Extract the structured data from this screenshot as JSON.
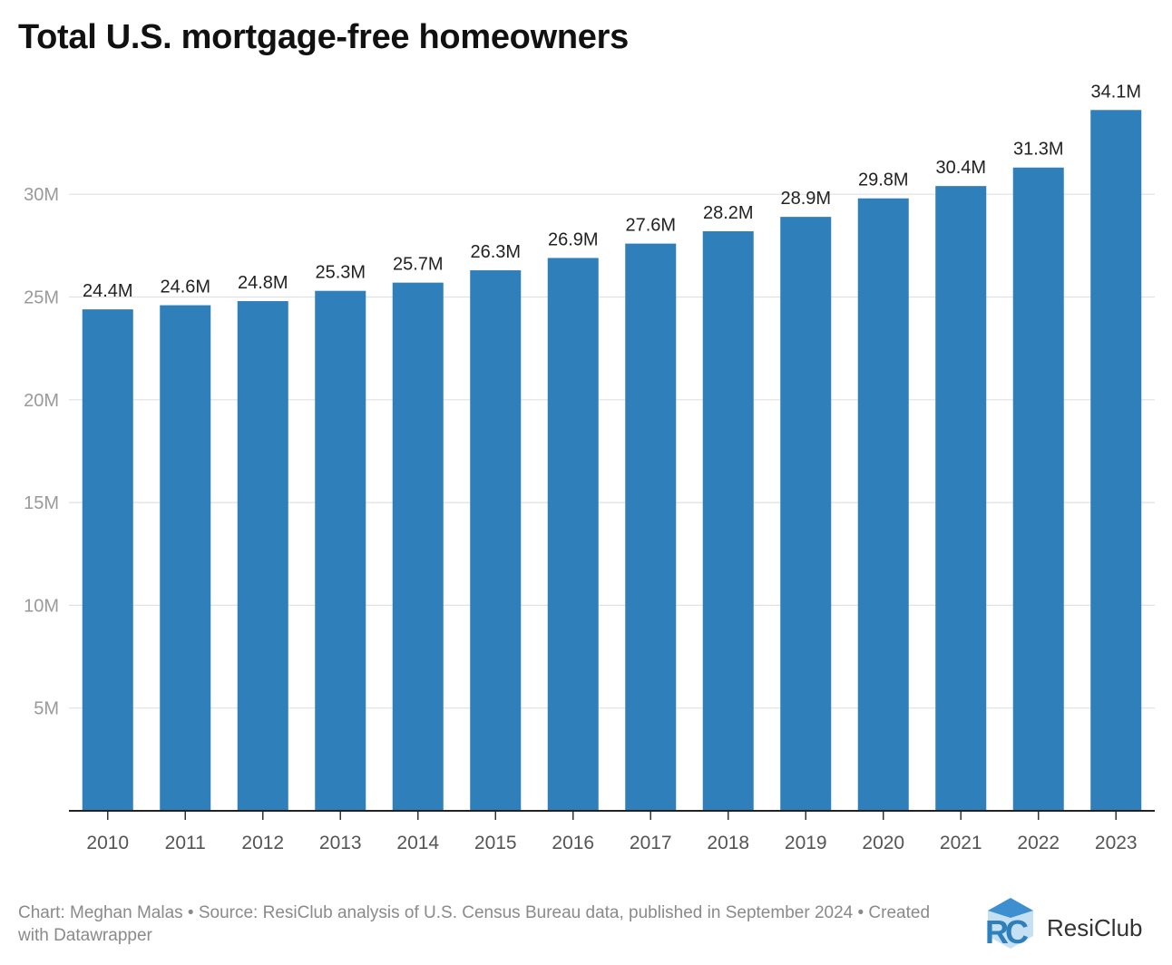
{
  "chart_data": {
    "type": "bar",
    "title": "Total U.S. mortgage-free homeowners",
    "categories": [
      "2010",
      "2011",
      "2012",
      "2013",
      "2014",
      "2015",
      "2016",
      "2017",
      "2018",
      "2019",
      "2020",
      "2021",
      "2022",
      "2023"
    ],
    "values": [
      24.4,
      24.6,
      24.8,
      25.3,
      25.7,
      26.3,
      26.9,
      27.6,
      28.2,
      28.9,
      29.8,
      30.4,
      31.3,
      34.1
    ],
    "value_labels": [
      "24.4M",
      "24.6M",
      "24.8M",
      "25.3M",
      "25.7M",
      "26.3M",
      "26.9M",
      "27.6M",
      "28.2M",
      "28.9M",
      "29.8M",
      "30.4M",
      "31.3M",
      "34.1M"
    ],
    "unit": "M",
    "y_ticks": [
      5,
      10,
      15,
      20,
      25,
      30
    ],
    "y_tick_labels": [
      "5M",
      "10M",
      "15M",
      "20M",
      "25M",
      "30M"
    ],
    "ylim": [
      0,
      35
    ],
    "xlabel": "",
    "ylabel": "",
    "grid": true,
    "bar_color": "#2e7fba"
  },
  "footer": {
    "credit": "Chart: Meghan Malas • Source: ResiClub analysis of U.S. Census Bureau data, published in September 2024 • Created with Datawrapper"
  },
  "logo": {
    "name": "ResiClub",
    "mark": "RC"
  }
}
